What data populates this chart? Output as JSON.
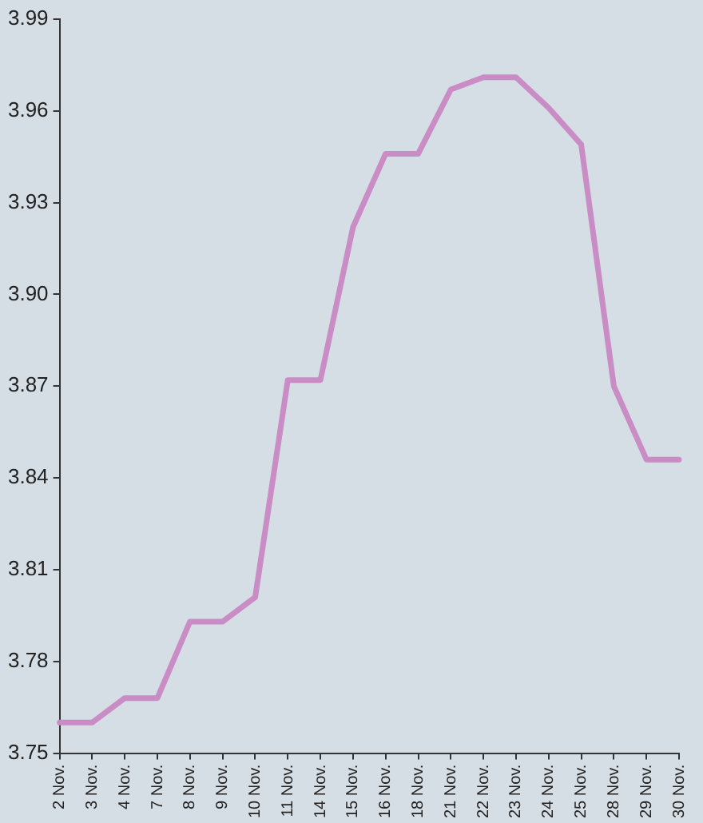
{
  "chart_data": {
    "type": "line",
    "categories": [
      "2 Nov.",
      "3 Nov.",
      "4 Nov.",
      "7 Nov.",
      "8 Nov.",
      "9 Nov.",
      "10 Nov.",
      "11 Nov.",
      "14 Nov.",
      "15 Nov.",
      "16 Nov.",
      "18 Nov.",
      "21 Nov.",
      "22 Nov.",
      "23 Nov.",
      "24 Nov.",
      "25 Nov.",
      "28 Nov.",
      "29 Nov.",
      "30 Nov."
    ],
    "series": [
      {
        "color": "#c98cc4",
        "values": [
          3.76,
          3.76,
          3.768,
          3.768,
          3.793,
          3.793,
          3.801,
          3.872,
          3.872,
          3.922,
          3.946,
          3.946,
          3.967,
          3.971,
          3.971,
          3.961,
          3.949,
          3.87,
          3.846,
          3.846
        ]
      }
    ],
    "ylim": [
      3.75,
      3.99
    ],
    "yticks": [
      3.75,
      3.78,
      3.81,
      3.84,
      3.87,
      {
        "value": 3.9,
        "label": "3.90"
      },
      3.93,
      3.96,
      3.99
    ],
    "grid": false,
    "legend": false,
    "marker": "none",
    "line_style": "solid"
  }
}
